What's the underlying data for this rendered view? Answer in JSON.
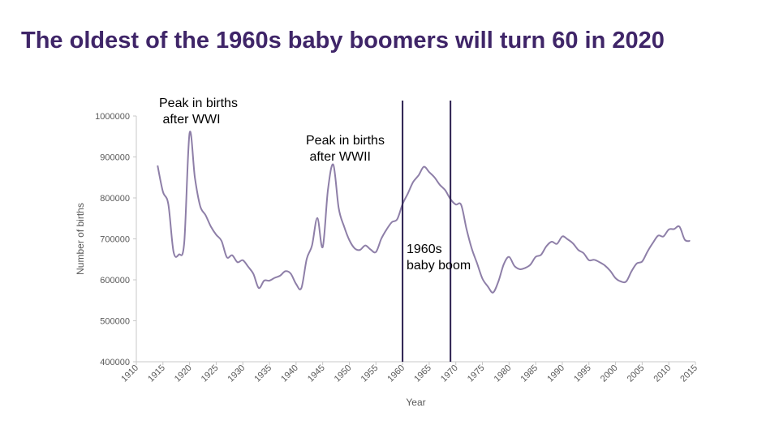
{
  "title": "The oldest of the 1960s baby boomers will turn 60 in 2020",
  "chart_data": {
    "type": "line",
    "xlabel": "Year",
    "ylabel": "Number of births",
    "xlim": [
      1910,
      2015
    ],
    "ylim": [
      400000,
      1000000
    ],
    "xticks": [
      1910,
      1915,
      1920,
      1925,
      1930,
      1935,
      1940,
      1945,
      1950,
      1955,
      1960,
      1965,
      1970,
      1975,
      1980,
      1985,
      1990,
      1995,
      2000,
      2005,
      2010,
      2015
    ],
    "yticks": [
      400000,
      500000,
      600000,
      700000,
      800000,
      900000,
      1000000
    ],
    "grid": false,
    "colors": {
      "line": "#8e7fa8",
      "marker_line": "#2b1f4f",
      "axis": "#c8c8c8",
      "tick_text": "#595959",
      "title": "#3f2568"
    },
    "series": [
      {
        "x": [
          1914,
          1915,
          1916,
          1917,
          1918,
          1919,
          1920,
          1921,
          1922,
          1923,
          1924,
          1925,
          1926,
          1927,
          1928,
          1929,
          1930,
          1931,
          1932,
          1933,
          1934,
          1935,
          1936,
          1937,
          1938,
          1939,
          1940,
          1941,
          1942,
          1943,
          1944,
          1945,
          1946,
          1947,
          1948,
          1949,
          1950,
          1951,
          1952,
          1953,
          1954,
          1955,
          1956,
          1957,
          1958,
          1959,
          1960,
          1961,
          1962,
          1963,
          1964,
          1965,
          1966,
          1967,
          1968,
          1969,
          1970,
          1971,
          1972,
          1973,
          1974,
          1975,
          1976,
          1977,
          1978,
          1979,
          1980,
          1981,
          1982,
          1983,
          1984,
          1985,
          1986,
          1987,
          1988,
          1989,
          1990,
          1991,
          1992,
          1993,
          1994,
          1995,
          1996,
          1997,
          1998,
          1999,
          2000,
          2001,
          2002,
          2003,
          2004,
          2005,
          2006,
          2007,
          2008,
          2009,
          2010,
          2011,
          2012,
          2013,
          2014
        ],
        "values": [
          879000,
          815000,
          785000,
          668000,
          662000,
          692000,
          958000,
          849000,
          780000,
          758000,
          730000,
          710000,
          695000,
          655000,
          660000,
          643000,
          648000,
          632000,
          614000,
          580000,
          598000,
          598000,
          605000,
          610000,
          621000,
          615000,
          590000,
          580000,
          651000,
          684000,
          751000,
          680000,
          821000,
          881000,
          775000,
          731000,
          697000,
          677000,
          673000,
          684000,
          674000,
          668000,
          700000,
          723000,
          741000,
          748000,
          785000,
          811000,
          839000,
          855000,
          876000,
          863000,
          850000,
          832000,
          819000,
          797000,
          784000,
          783000,
          725000,
          676000,
          640000,
          603000,
          584000,
          569000,
          596000,
          638000,
          656000,
          634000,
          626000,
          629000,
          637000,
          656000,
          661000,
          682000,
          693000,
          688000,
          706000,
          699000,
          689000,
          673000,
          665000,
          648000,
          649000,
          643000,
          635000,
          622000,
          604000,
          596000,
          596000,
          621000,
          640000,
          645000,
          669000,
          690000,
          708000,
          706000,
          723000,
          724000,
          730000,
          698000,
          695000
        ]
      }
    ],
    "annotations": [
      {
        "text": "Peak in births\n after WWI"
      },
      {
        "text": "Peak in births\n after WWII"
      },
      {
        "text": "1960s\nbaby boom"
      }
    ],
    "vertical_lines": [
      1960,
      1969
    ]
  }
}
